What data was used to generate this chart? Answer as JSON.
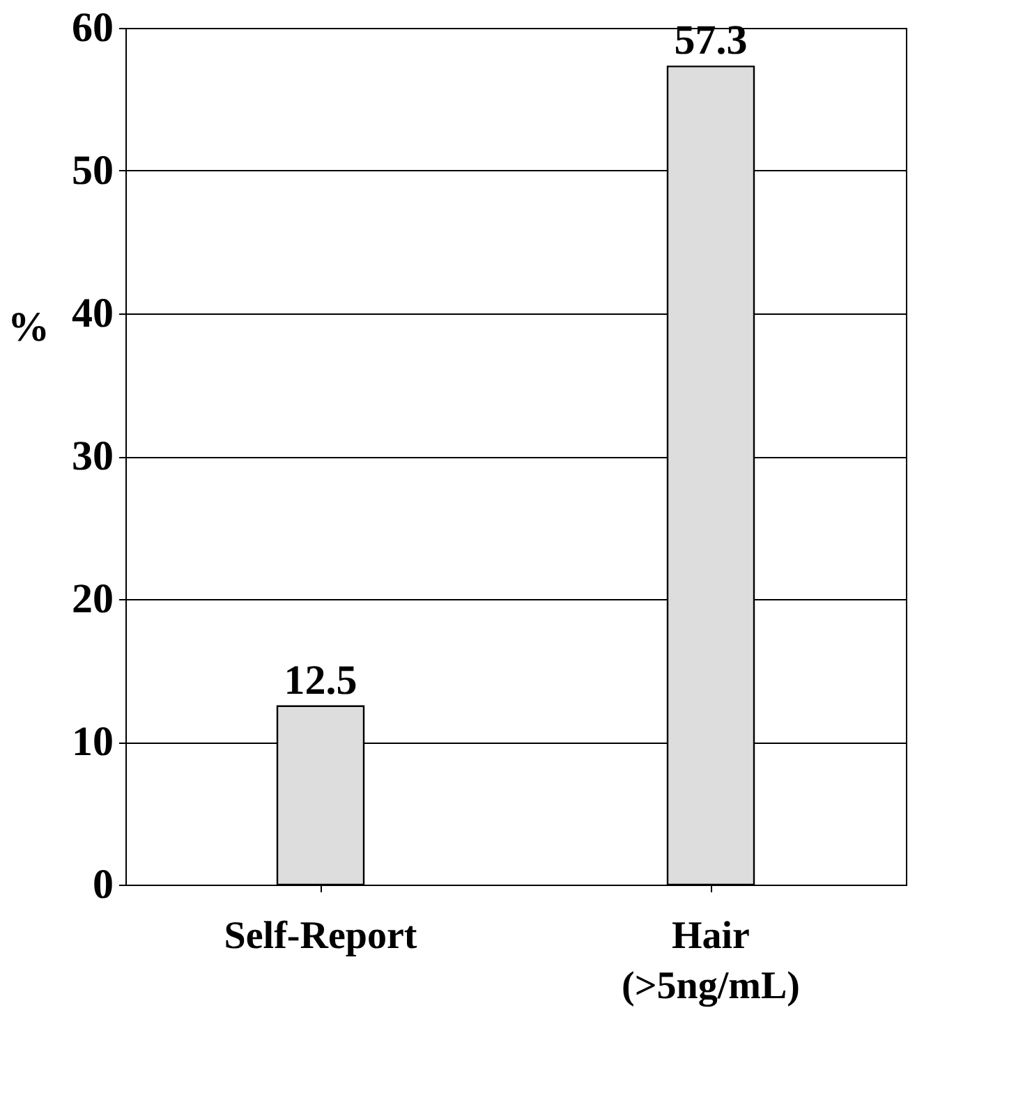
{
  "chart_data": {
    "type": "bar",
    "ylabel": "%",
    "categories": [
      "Self-Report",
      "Hair (>5ng/mL)"
    ],
    "values": [
      12.5,
      57.3
    ],
    "color": "#dddddd",
    "ylim": [
      0,
      60
    ],
    "yticks": [
      0,
      10,
      20,
      30,
      40,
      50,
      60
    ],
    "grid": "y",
    "data_labels": true
  }
}
